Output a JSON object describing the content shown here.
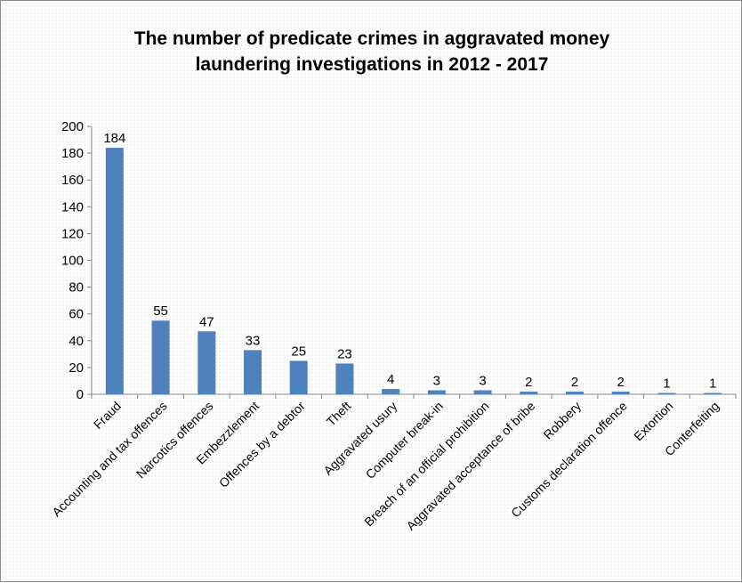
{
  "chart_data": {
    "type": "bar",
    "title_lines": [
      "The number of predicate crimes in aggravated money",
      "laundering investigations in 2012 - 2017"
    ],
    "xlabel": "",
    "ylabel": "",
    "ylim": [
      0,
      200
    ],
    "yticks": [
      0,
      20,
      40,
      60,
      80,
      100,
      120,
      140,
      160,
      180,
      200
    ],
    "grid": false,
    "legend": "none",
    "bar_color": "#4f81bd",
    "categories": [
      "Fraud",
      "Accounting and tax offences",
      "Narcotics offences",
      "Embezzlement",
      "Offences by a debtor",
      "Theft",
      "Aggravated usury",
      "Computer break-in",
      "Breach of an official prohibition",
      "Aggravated acceptance of bribe",
      "Robbery",
      "Customs declaration offence",
      "Extortion",
      "Conterfeiting"
    ],
    "values": [
      184,
      55,
      47,
      33,
      25,
      23,
      4,
      3,
      3,
      2,
      2,
      2,
      1,
      1
    ]
  }
}
